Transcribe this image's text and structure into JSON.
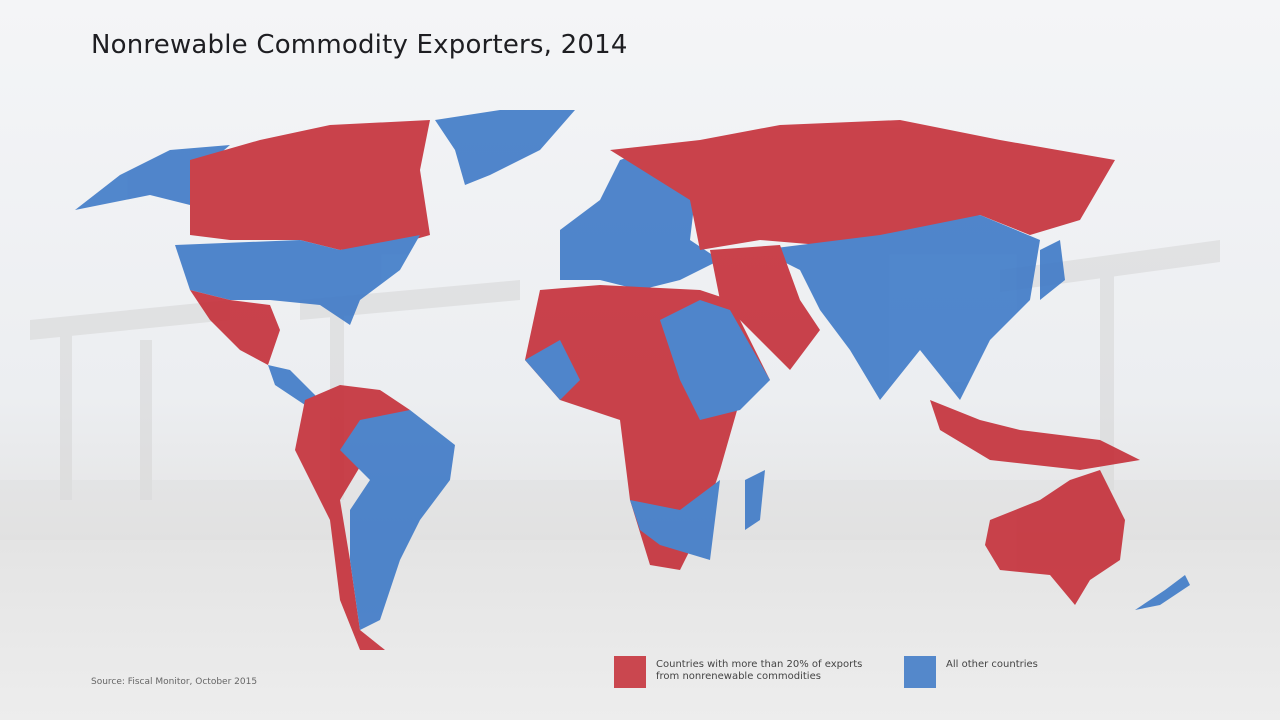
{
  "title": "Nonrewable Commodity Exporters, 2014",
  "source": "Source: Fiscal Monitor, October 2015",
  "legend": [
    {
      "label": "Countries with more than 20% of exports from nonrenewable commodities",
      "color": "#c42a34"
    },
    {
      "label": "All other countries",
      "color": "#3a77c6"
    }
  ]
}
